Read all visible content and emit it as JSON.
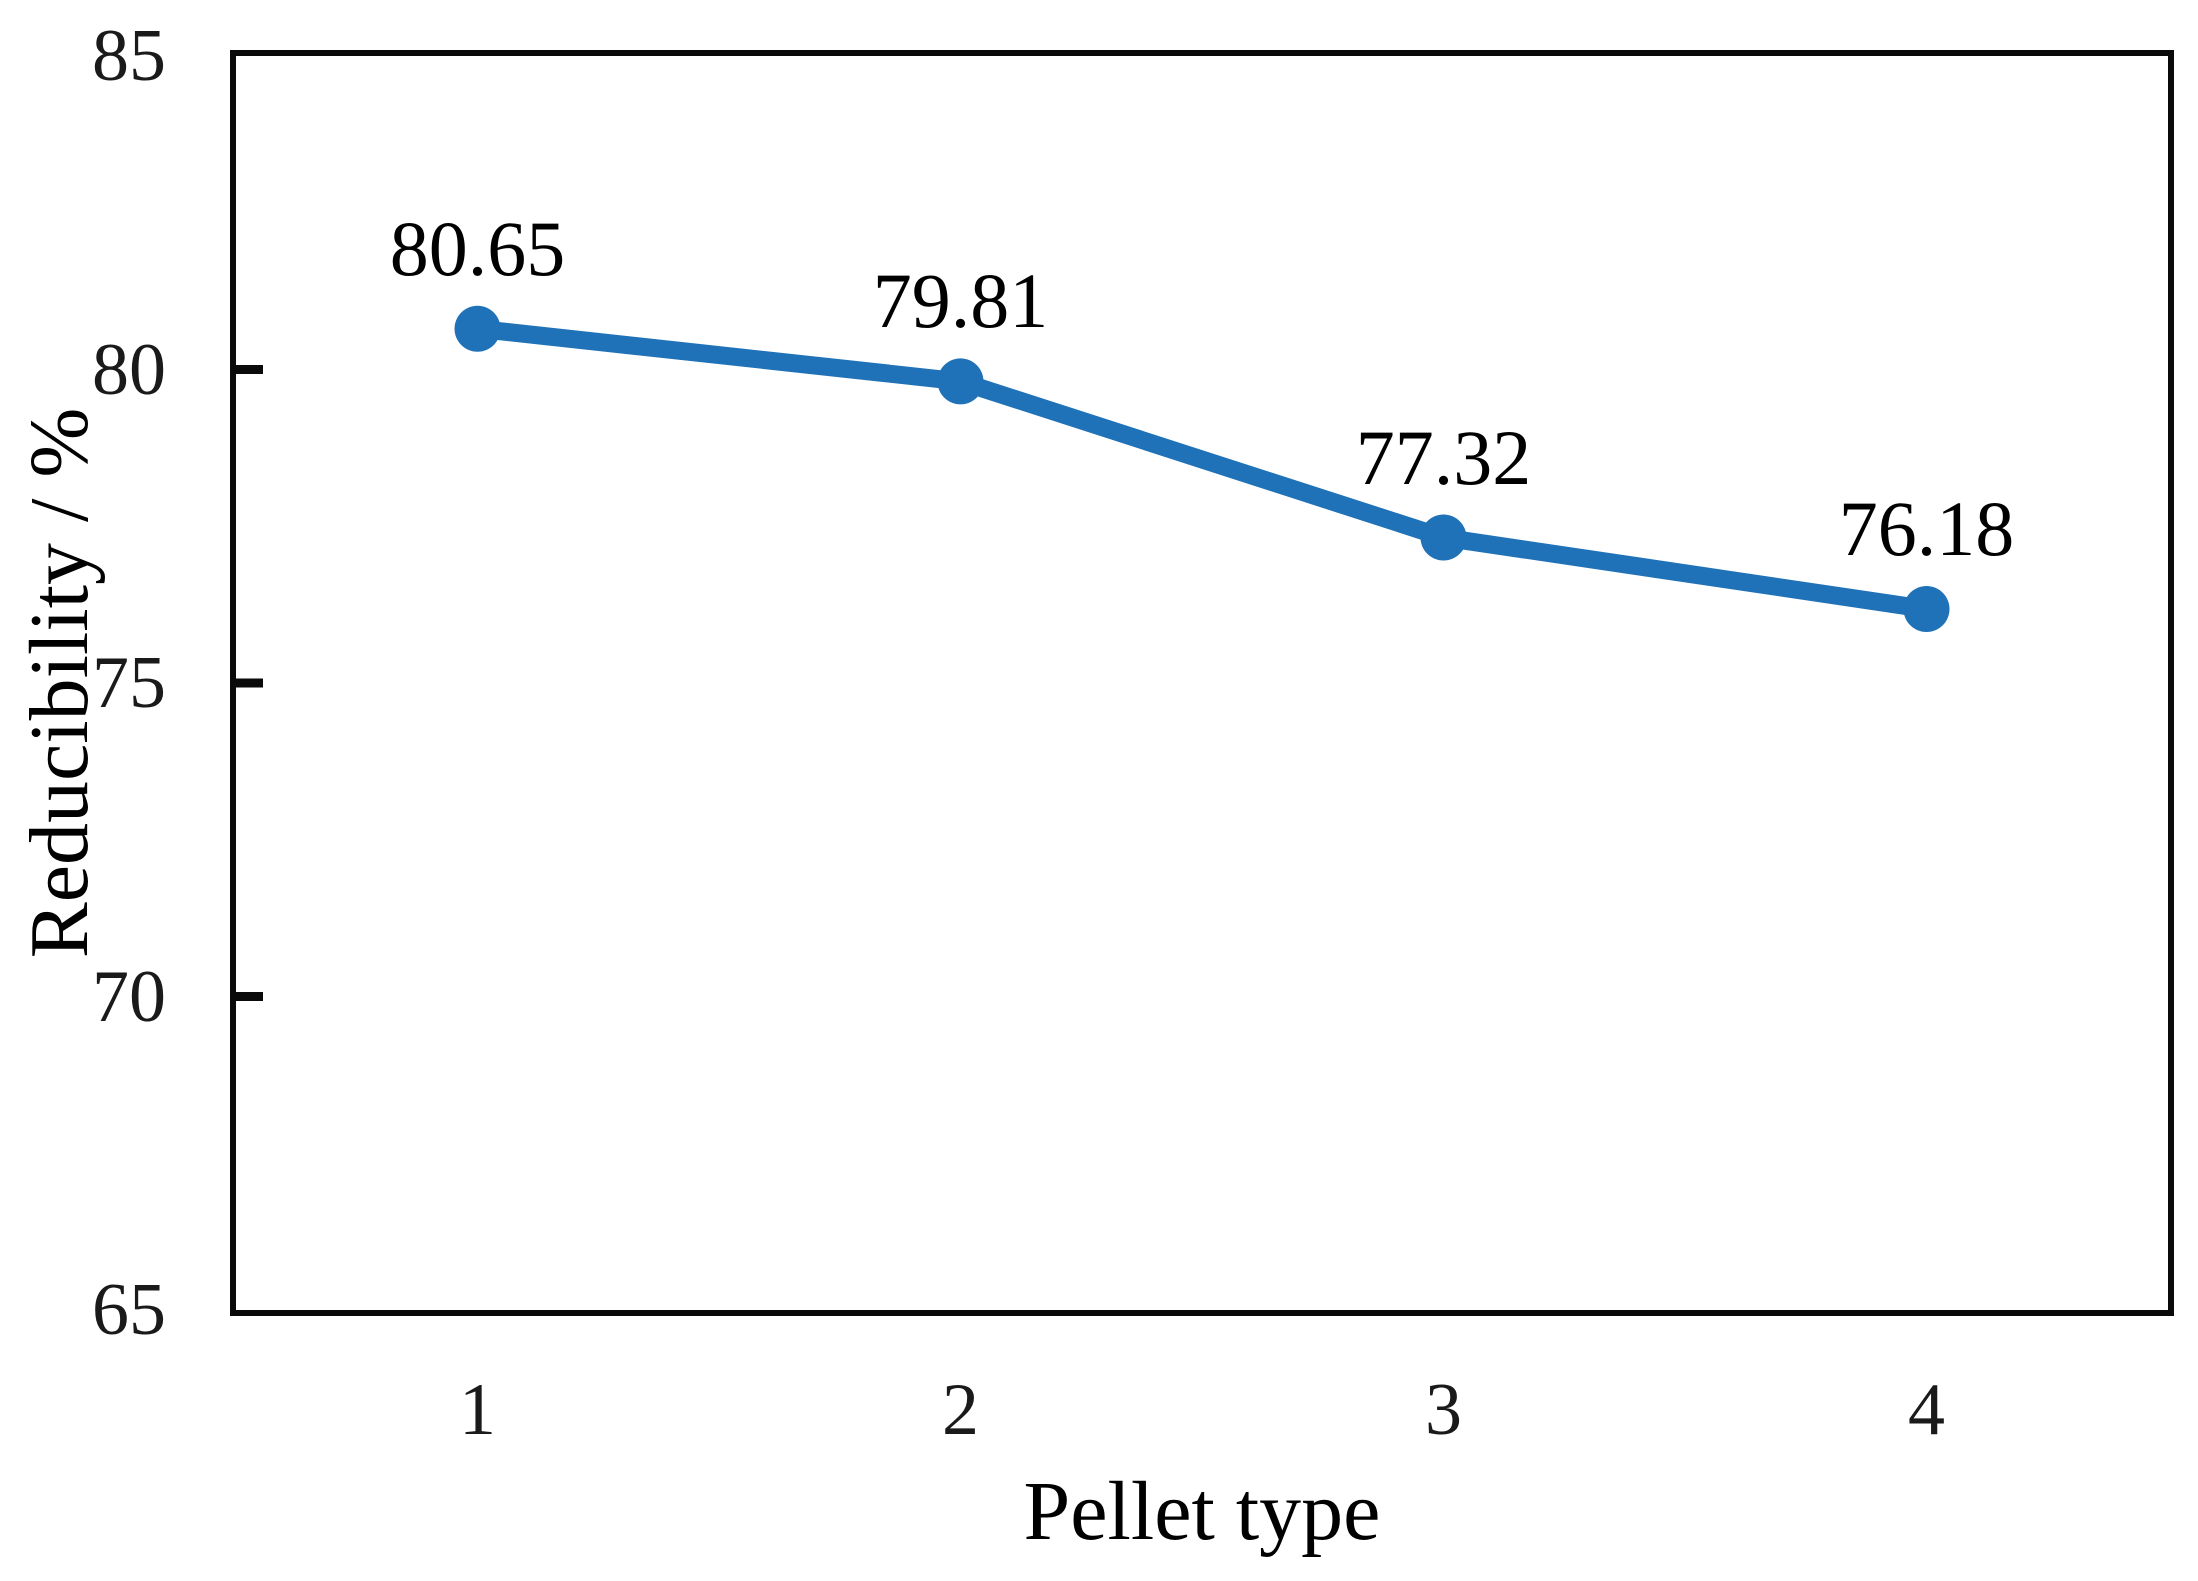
{
  "chart_data": {
    "type": "line",
    "title": "",
    "xlabel": "Pellet type",
    "ylabel": "Reducibility / %",
    "categories": [
      "1",
      "2",
      "3",
      "4"
    ],
    "series": [
      {
        "name": "Reducibility",
        "values": [
          80.65,
          79.81,
          77.32,
          76.18
        ],
        "data_labels": [
          "80.65",
          "79.81",
          "77.32",
          "76.18"
        ],
        "color": "#1f72b8",
        "marker": "circle"
      }
    ],
    "ylim": [
      65,
      85
    ],
    "y_ticks": [
      85,
      80,
      75,
      70,
      65
    ],
    "x_ticks": [
      "1",
      "2",
      "3",
      "4"
    ],
    "grid": false,
    "legend": false,
    "axis_color": "#0a0a0a"
  }
}
